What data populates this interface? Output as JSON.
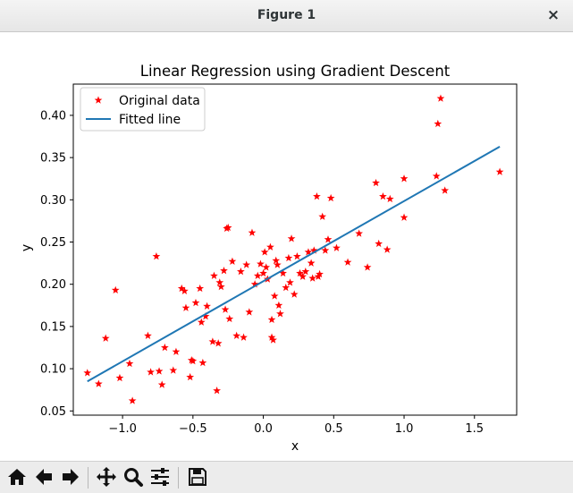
{
  "window": {
    "title": "Figure 1",
    "close_label": "×"
  },
  "toolbar": {
    "buttons": [
      "home-icon",
      "back-arrow-icon",
      "forward-arrow-icon",
      "pan-move-icon",
      "zoom-magnifier-icon",
      "subplots-sliders-icon",
      "save-floppy-icon"
    ]
  },
  "colors": {
    "data": "#ff0000",
    "line": "#1f77b4"
  },
  "chart_data": {
    "type": "scatter",
    "title": "Linear Regression using Gradient Descent",
    "xlabel": "x",
    "ylabel": "y",
    "xlim": [
      -1.35,
      1.8
    ],
    "ylim": [
      0.045,
      0.437
    ],
    "xticks": [
      -1.0,
      -0.5,
      0.0,
      0.5,
      1.0,
      1.5
    ],
    "xtick_labels": [
      "−1.0",
      "−0.5",
      "0.0",
      "0.5",
      "1.0",
      "1.5"
    ],
    "yticks": [
      0.05,
      0.1,
      0.15,
      0.2,
      0.25,
      0.3,
      0.35,
      0.4
    ],
    "ytick_labels": [
      "0.05",
      "0.10",
      "0.15",
      "0.20",
      "0.25",
      "0.30",
      "0.35",
      "0.40"
    ],
    "legend": {
      "position": "upper left",
      "entries": [
        "Original data",
        "Fitted line"
      ]
    },
    "series": [
      {
        "name": "Original data",
        "style": "red star markers",
        "x": [
          -1.25,
          -1.17,
          -1.12,
          -1.05,
          -1.02,
          -0.95,
          -0.93,
          -0.82,
          -0.8,
          -0.76,
          -0.74,
          -0.72,
          -0.7,
          -0.64,
          -0.62,
          -0.58,
          -0.56,
          -0.55,
          -0.52,
          -0.51,
          -0.5,
          -0.48,
          -0.45,
          -0.44,
          -0.43,
          -0.41,
          -0.4,
          -0.36,
          -0.35,
          -0.33,
          -0.32,
          -0.31,
          -0.3,
          -0.28,
          -0.27,
          -0.26,
          -0.25,
          -0.24,
          -0.22,
          -0.19,
          -0.16,
          -0.14,
          -0.12,
          -0.1,
          -0.08,
          -0.06,
          -0.04,
          -0.02,
          0.0,
          0.01,
          0.02,
          0.03,
          0.05,
          0.06,
          0.06,
          0.07,
          0.08,
          0.09,
          0.1,
          0.11,
          0.12,
          0.14,
          0.16,
          0.18,
          0.19,
          0.2,
          0.22,
          0.24,
          0.26,
          0.28,
          0.3,
          0.32,
          0.34,
          0.35,
          0.36,
          0.38,
          0.39,
          0.4,
          0.42,
          0.44,
          0.46,
          0.48,
          0.52,
          0.6,
          0.68,
          0.74,
          0.8,
          0.82,
          0.85,
          0.88,
          0.9,
          1.0,
          1.0,
          1.23,
          1.24,
          1.26,
          1.29,
          1.68
        ],
        "y": [
          0.095,
          0.082,
          0.136,
          0.193,
          0.089,
          0.106,
          0.062,
          0.139,
          0.096,
          0.233,
          0.097,
          0.081,
          0.125,
          0.098,
          0.12,
          0.195,
          0.192,
          0.172,
          0.09,
          0.11,
          0.109,
          0.178,
          0.195,
          0.155,
          0.107,
          0.162,
          0.174,
          0.132,
          0.21,
          0.074,
          0.13,
          0.202,
          0.197,
          0.216,
          0.17,
          0.266,
          0.267,
          0.159,
          0.227,
          0.139,
          0.215,
          0.137,
          0.223,
          0.167,
          0.261,
          0.2,
          0.21,
          0.224,
          0.213,
          0.238,
          0.22,
          0.206,
          0.244,
          0.158,
          0.137,
          0.134,
          0.186,
          0.228,
          0.223,
          0.175,
          0.165,
          0.213,
          0.196,
          0.231,
          0.202,
          0.254,
          0.188,
          0.233,
          0.213,
          0.209,
          0.215,
          0.238,
          0.225,
          0.207,
          0.24,
          0.304,
          0.209,
          0.212,
          0.28,
          0.24,
          0.253,
          0.302,
          0.243,
          0.226,
          0.26,
          0.22,
          0.32,
          0.248,
          0.304,
          0.241,
          0.301,
          0.279,
          0.325,
          0.328,
          0.39,
          0.42,
          0.311,
          0.333
        ]
      },
      {
        "name": "Fitted line",
        "style": "blue line",
        "x": [
          -1.25,
          1.68
        ],
        "y": [
          0.085,
          0.363
        ]
      }
    ]
  }
}
